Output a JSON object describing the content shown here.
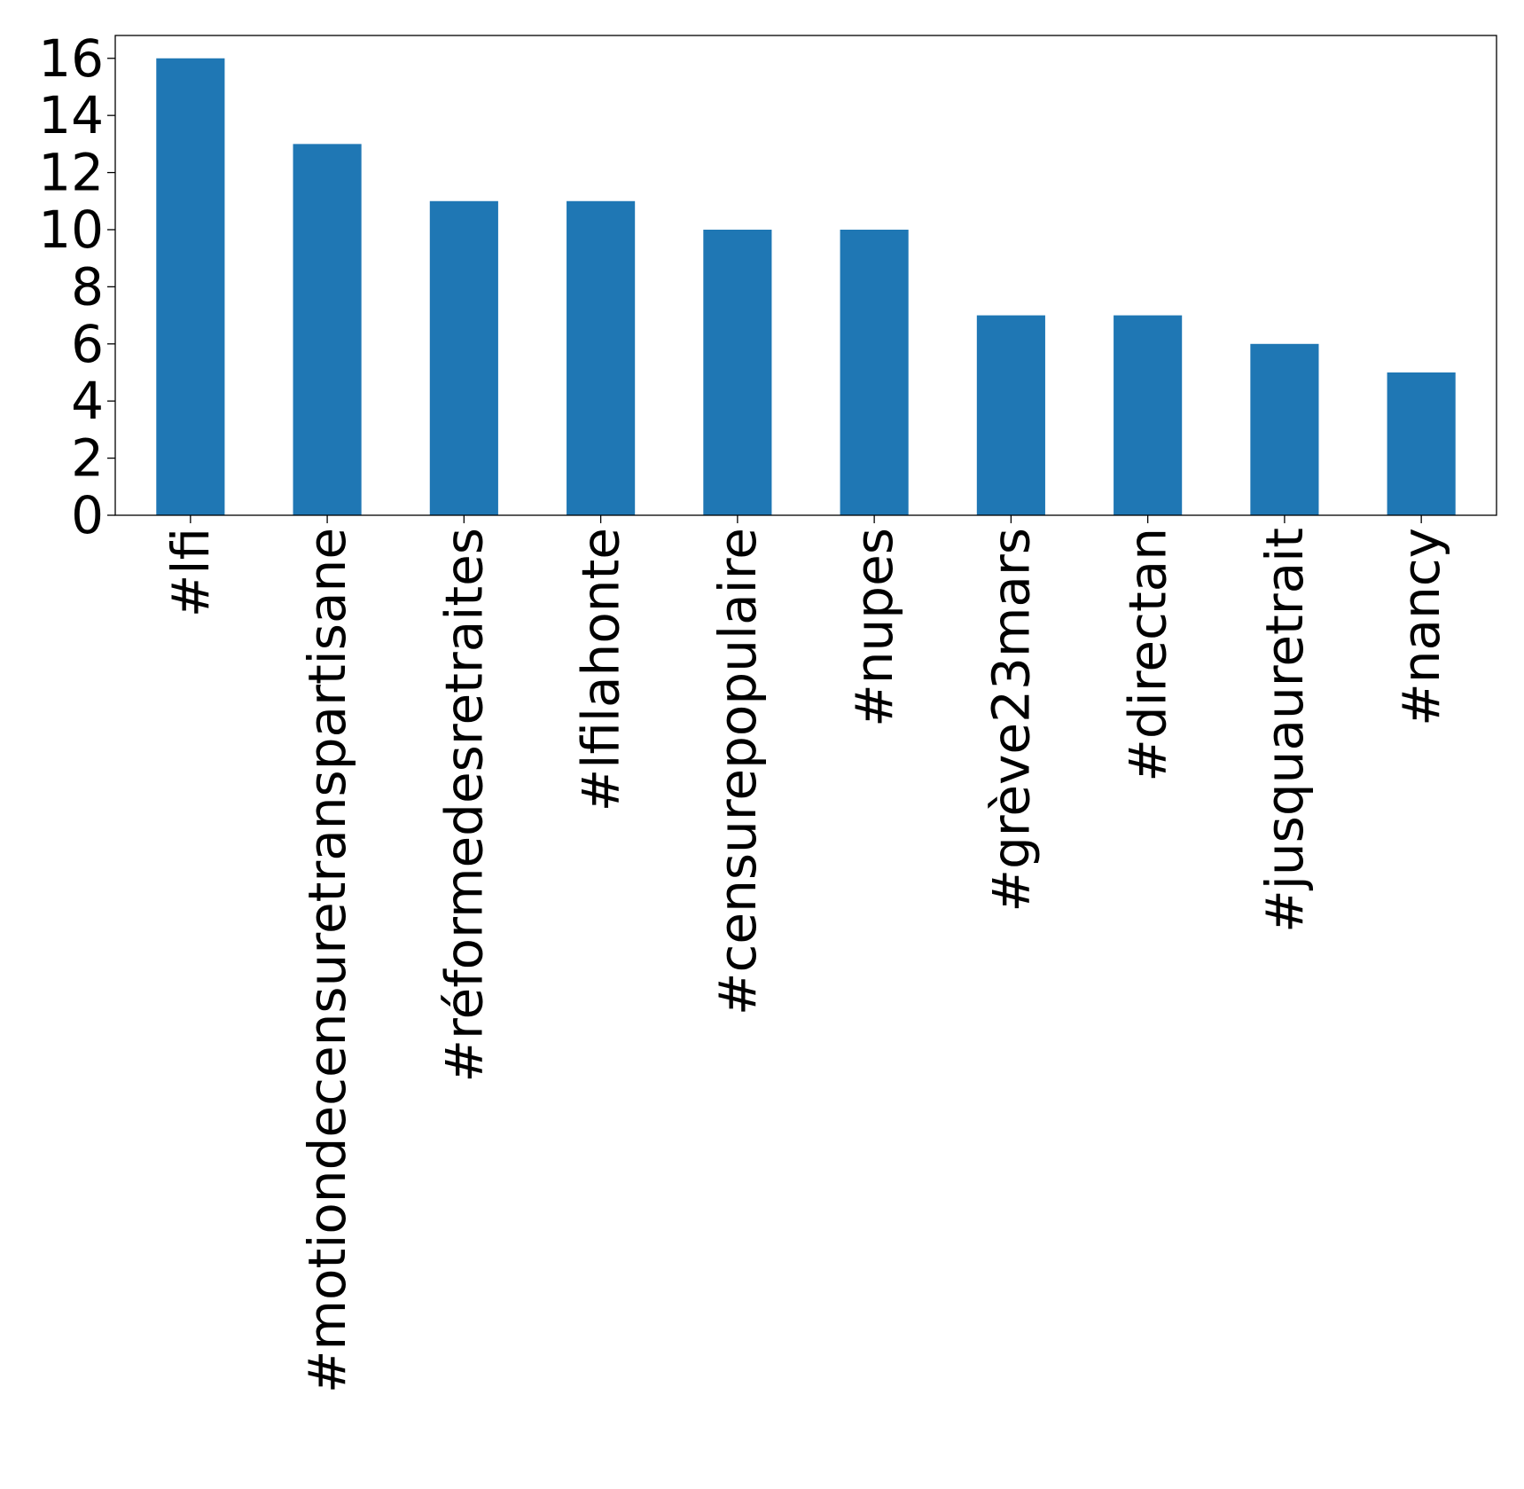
{
  "chart_data": {
    "type": "bar",
    "categories": [
      "#lfi",
      "#motiondecensuretranspartisane",
      "#réformedesretraites",
      "#lfilahonte",
      "#censurepopulaire",
      "#nupes",
      "#grève23mars",
      "#directan",
      "#jusquauretrait",
      "#nancy"
    ],
    "values": [
      16,
      13,
      11,
      11,
      10,
      10,
      7,
      7,
      6,
      5
    ],
    "ylim": [
      0,
      16.8
    ],
    "yticks": [
      0,
      2,
      4,
      6,
      8,
      10,
      12,
      14,
      16
    ],
    "bar_color": "#1f77b4",
    "grid": false,
    "legend": "none"
  }
}
